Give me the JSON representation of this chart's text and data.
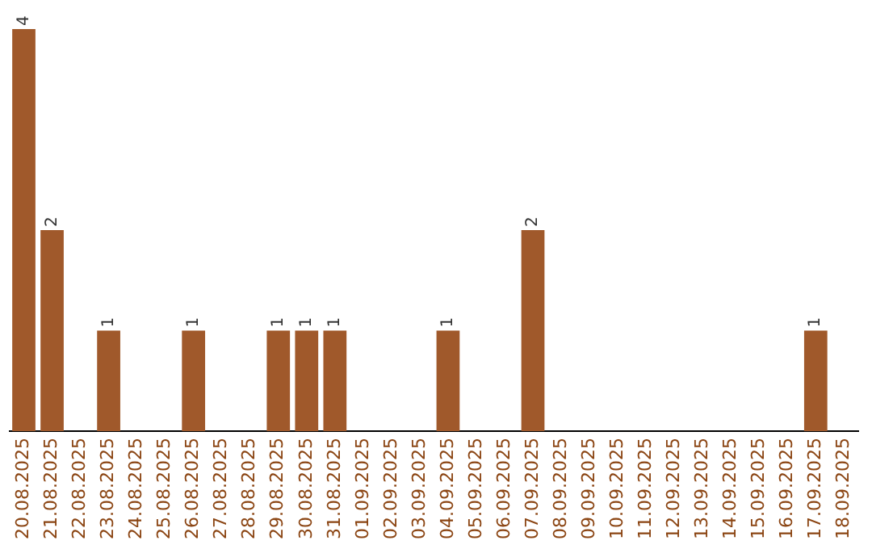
{
  "chart_data": {
    "type": "bar",
    "categories": [
      "20.08.2025",
      "21.08.2025",
      "22.08.2025",
      "23.08.2025",
      "24.08.2025",
      "25.08.2025",
      "26.08.2025",
      "27.08.2025",
      "28.08.2025",
      "29.08.2025",
      "30.08.2025",
      "31.08.2025",
      "01.09.2025",
      "02.09.2025",
      "03.09.2025",
      "04.09.2025",
      "05.09.2025",
      "06.09.2025",
      "07.09.2025",
      "08.09.2025",
      "09.09.2025",
      "10.09.2025",
      "11.09.2025",
      "12.09.2025",
      "13.09.2025",
      "14.09.2025",
      "15.09.2025",
      "16.09.2025",
      "17.09.2025",
      "18.09.2025"
    ],
    "values": [
      4,
      2,
      0,
      1,
      0,
      0,
      1,
      0,
      0,
      1,
      1,
      1,
      0,
      0,
      0,
      1,
      0,
      0,
      2,
      0,
      0,
      0,
      0,
      0,
      0,
      0,
      0,
      0,
      1,
      0
    ],
    "value_labels": [
      "4",
      "2",
      null,
      "1",
      null,
      null,
      "1",
      null,
      null,
      "1",
      "1",
      "1",
      null,
      null,
      null,
      "1",
      null,
      null,
      "2",
      null,
      null,
      null,
      null,
      null,
      null,
      null,
      null,
      null,
      "1",
      null
    ],
    "color": "#a0592b",
    "grid": false,
    "tick_labels": "x"
  }
}
